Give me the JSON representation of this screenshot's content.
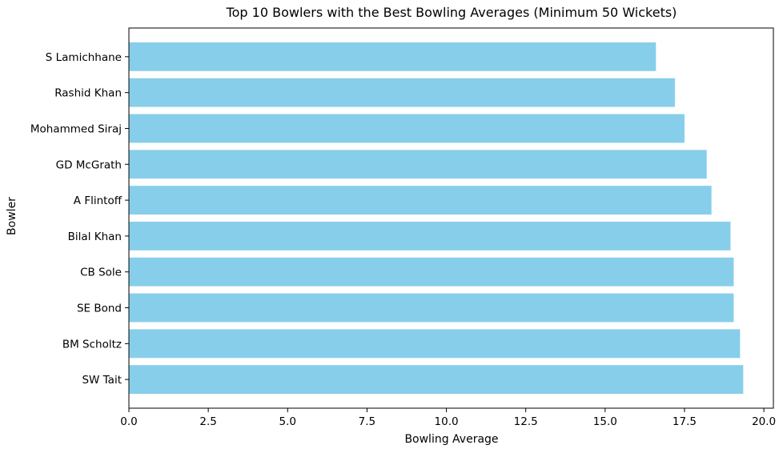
{
  "chart_data": {
    "type": "bar",
    "orientation": "horizontal",
    "title": "Top 10 Bowlers with the Best Bowling Averages (Minimum 50 Wickets)",
    "xlabel": "Bowling Average",
    "ylabel": "Bowler",
    "xlim": [
      0,
      20.3
    ],
    "xticks": [
      0.0,
      2.5,
      5.0,
      7.5,
      10.0,
      12.5,
      15.0,
      17.5,
      20.0
    ],
    "xtick_labels": [
      "0.0",
      "2.5",
      "5.0",
      "7.5",
      "10.0",
      "12.5",
      "15.0",
      "17.5",
      "20.0"
    ],
    "categories": [
      "S Lamichhane",
      "Rashid Khan",
      "Mohammed Siraj",
      "GD McGrath",
      "A Flintoff",
      "Bilal Khan",
      "CB Sole",
      "SE Bond",
      "BM Scholtz",
      "SW Tait"
    ],
    "values": [
      16.6,
      17.2,
      17.5,
      18.2,
      18.35,
      18.95,
      19.05,
      19.05,
      19.25,
      19.35
    ],
    "bar_color": "#87ceeb",
    "grid": false,
    "legend": "none"
  }
}
